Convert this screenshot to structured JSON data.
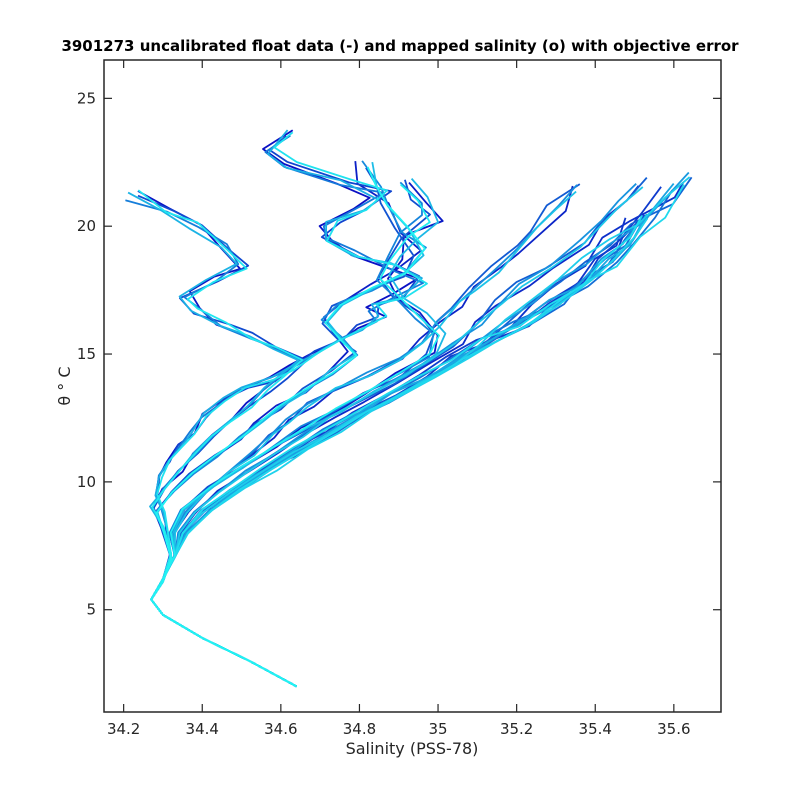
{
  "chart_data": {
    "type": "line",
    "title": "3901273 uncalibrated float data (-) and mapped salinity (o) with objective error",
    "xlabel": "Salinity (PSS-78)",
    "ylabel": "θ ° C",
    "xlim": [
      34.15,
      35.72
    ],
    "ylim": [
      1.0,
      26.5
    ],
    "xticks": [
      34.2,
      34.4,
      34.6,
      34.8,
      35,
      35.2,
      35.4,
      35.6
    ],
    "xtick_labels": [
      "34.2",
      "34.4",
      "34.6",
      "34.8",
      "35",
      "35.2",
      "35.4",
      "35.6"
    ],
    "yticks": [
      5,
      10,
      15,
      20,
      25
    ],
    "ytick_labels": [
      "5",
      "10",
      "15",
      "20",
      "25"
    ],
    "grid": false,
    "colors": {
      "start": "#0a10c4",
      "end": "#22f2f2",
      "axis": "#262626"
    },
    "profile_count": 44,
    "series": [
      {
        "x": [
          34.64,
          34.52,
          34.4,
          34.3,
          34.27,
          34.3,
          34.32,
          34.31,
          34.3,
          34.28,
          34.29,
          34.31,
          34.34,
          34.37,
          34.4,
          34.45,
          34.5,
          34.57,
          34.62,
          34.68,
          34.74,
          34.8,
          34.85,
          34.83,
          34.9,
          34.95,
          34.88,
          34.78,
          34.7,
          34.72,
          34.8,
          34.85,
          34.75,
          34.62,
          34.55,
          34.6
        ],
        "y": [
          2.0,
          3.0,
          3.9,
          4.8,
          5.4,
          6.1,
          7.0,
          8.0,
          8.8,
          9.5,
          10.2,
          10.8,
          11.4,
          11.9,
          12.6,
          13.2,
          13.6,
          14.0,
          14.5,
          15.0,
          15.5,
          16.0,
          16.4,
          16.8,
          17.3,
          17.9,
          18.4,
          18.9,
          19.5,
          20.1,
          20.6,
          21.2,
          21.7,
          22.3,
          23.0,
          23.7
        ]
      },
      {
        "x": [
          34.64,
          34.52,
          34.4,
          34.3,
          34.27,
          34.3,
          34.32,
          34.3,
          34.27,
          34.3,
          34.34,
          34.38,
          34.42,
          34.47,
          34.52,
          34.56,
          34.6,
          34.65,
          34.58,
          34.52,
          34.45,
          34.38,
          34.35,
          34.42,
          34.5,
          34.45,
          34.38,
          34.3,
          34.22
        ],
        "y": [
          2.0,
          3.0,
          3.9,
          4.8,
          5.4,
          6.2,
          7.2,
          8.2,
          9.0,
          9.7,
          10.4,
          11.1,
          11.8,
          12.4,
          13.0,
          13.6,
          14.1,
          14.7,
          15.2,
          15.7,
          16.2,
          16.7,
          17.3,
          17.9,
          18.5,
          19.2,
          20.0,
          20.7,
          21.2
        ]
      },
      {
        "x": [
          34.64,
          34.52,
          34.4,
          34.3,
          34.27,
          34.3,
          34.33,
          34.32,
          34.35,
          34.42,
          34.5,
          34.58,
          34.66,
          34.74,
          34.82,
          34.9,
          34.98,
          35.0,
          34.95,
          34.9,
          34.85,
          34.88,
          34.92,
          34.98,
          34.95,
          34.9
        ],
        "y": [
          2.0,
          3.0,
          3.9,
          4.8,
          5.4,
          6.2,
          7.1,
          8.0,
          8.9,
          9.8,
          10.6,
          11.4,
          12.1,
          12.8,
          13.5,
          14.2,
          15.0,
          15.8,
          16.5,
          17.3,
          18.0,
          18.8,
          19.6,
          20.3,
          21.0,
          21.8
        ]
      },
      {
        "x": [
          34.64,
          34.52,
          34.4,
          34.3,
          34.27,
          34.3,
          34.32,
          34.3,
          34.28,
          34.32,
          34.37,
          34.43,
          34.49,
          34.54,
          34.59,
          34.65,
          34.72,
          34.78,
          34.74,
          34.7,
          34.74,
          34.82,
          34.9,
          34.95,
          34.9,
          34.85,
          34.82,
          34.8
        ],
        "y": [
          2.0,
          3.0,
          3.9,
          4.8,
          5.4,
          6.1,
          7.0,
          8.0,
          8.8,
          9.6,
          10.3,
          11.0,
          11.7,
          12.3,
          12.9,
          13.6,
          14.3,
          15.0,
          15.7,
          16.3,
          17.0,
          17.6,
          18.2,
          19.0,
          19.9,
          20.8,
          21.6,
          22.4
        ]
      },
      {
        "x": [
          34.64,
          34.52,
          34.4,
          34.3,
          34.27,
          34.3,
          34.33,
          34.33,
          34.36,
          34.41,
          34.47,
          34.53,
          34.58,
          34.62,
          34.67,
          34.74,
          34.82,
          34.9,
          34.96,
          35.0,
          35.05,
          35.1,
          35.15,
          35.2,
          35.25,
          35.3,
          35.35
        ],
        "y": [
          2.0,
          3.0,
          3.9,
          4.8,
          5.4,
          6.2,
          7.1,
          8.0,
          8.8,
          9.6,
          10.4,
          11.1,
          11.8,
          12.4,
          13.0,
          13.6,
          14.2,
          14.8,
          15.5,
          16.2,
          16.9,
          17.6,
          18.3,
          19.1,
          19.9,
          20.7,
          21.5
        ]
      },
      {
        "x": [
          34.64,
          34.52,
          34.4,
          34.3,
          34.27,
          34.3,
          34.33,
          34.34,
          34.38,
          34.44,
          34.51,
          34.58,
          34.65,
          34.72,
          34.8,
          34.88,
          34.96,
          35.04,
          35.1,
          35.15,
          35.2,
          35.28,
          35.35,
          35.4,
          35.45,
          35.5
        ],
        "y": [
          2.0,
          3.0,
          3.9,
          4.8,
          5.4,
          6.2,
          7.1,
          8.0,
          8.8,
          9.6,
          10.4,
          11.1,
          11.8,
          12.5,
          13.2,
          13.9,
          14.6,
          15.4,
          16.2,
          17.0,
          17.7,
          18.5,
          19.3,
          20.1,
          20.9,
          21.7
        ]
      },
      {
        "x": [
          34.64,
          34.52,
          34.4,
          34.3,
          34.27,
          34.3,
          34.33,
          34.35,
          34.4,
          34.47,
          34.55,
          34.63,
          34.71,
          34.79,
          34.87,
          34.95,
          35.03,
          35.1,
          35.17,
          35.24,
          35.3,
          35.37,
          35.43,
          35.5,
          35.57,
          35.63
        ],
        "y": [
          2.0,
          3.0,
          3.9,
          4.8,
          5.4,
          6.2,
          7.1,
          8.0,
          8.8,
          9.6,
          10.4,
          11.1,
          11.8,
          12.5,
          13.2,
          13.9,
          14.6,
          15.4,
          16.2,
          17.0,
          17.8,
          18.6,
          19.4,
          20.2,
          21.0,
          21.9
        ]
      },
      {
        "x": [
          34.64,
          34.52,
          34.4,
          34.3,
          34.27,
          34.3,
          34.33,
          34.36,
          34.42,
          34.5,
          34.58,
          34.66,
          34.74,
          34.82,
          34.9,
          34.98,
          35.06,
          35.14,
          35.22,
          35.3,
          35.37,
          35.42,
          35.47,
          35.5
        ],
        "y": [
          2.0,
          3.0,
          3.9,
          4.8,
          5.4,
          6.2,
          7.1,
          8.0,
          8.9,
          9.7,
          10.5,
          11.3,
          12.0,
          12.7,
          13.4,
          14.1,
          14.8,
          15.5,
          16.2,
          17.0,
          17.8,
          18.6,
          19.4,
          20.2
        ]
      },
      {
        "x": [
          34.64,
          34.52,
          34.4,
          34.3,
          34.27,
          34.3,
          34.33,
          34.36,
          34.42,
          34.49,
          34.57,
          34.65,
          34.73,
          34.81,
          34.89,
          34.97,
          35.05,
          35.13,
          35.21,
          35.29,
          35.37,
          35.44,
          35.5,
          35.55,
          35.6
        ],
        "y": [
          2.0,
          3.0,
          3.9,
          4.8,
          5.4,
          6.2,
          7.1,
          8.0,
          8.9,
          9.7,
          10.5,
          11.3,
          12.0,
          12.7,
          13.4,
          14.1,
          14.8,
          15.5,
          16.2,
          17.0,
          17.8,
          18.6,
          19.5,
          20.5,
          21.6
        ]
      },
      {
        "x": [
          34.64,
          34.52,
          34.4,
          34.3,
          34.27,
          34.3,
          34.33,
          34.35,
          34.4,
          34.47,
          34.55,
          34.63,
          34.71,
          34.79,
          34.87,
          34.95,
          35.03,
          35.11,
          35.2,
          35.28,
          35.36,
          35.42,
          35.48,
          35.52
        ],
        "y": [
          2.0,
          3.0,
          3.9,
          4.8,
          5.4,
          6.2,
          7.1,
          8.0,
          8.9,
          9.7,
          10.5,
          11.3,
          12.0,
          12.7,
          13.4,
          14.1,
          14.8,
          15.5,
          16.2,
          17.0,
          17.8,
          18.6,
          19.4,
          20.3
        ]
      }
    ]
  }
}
